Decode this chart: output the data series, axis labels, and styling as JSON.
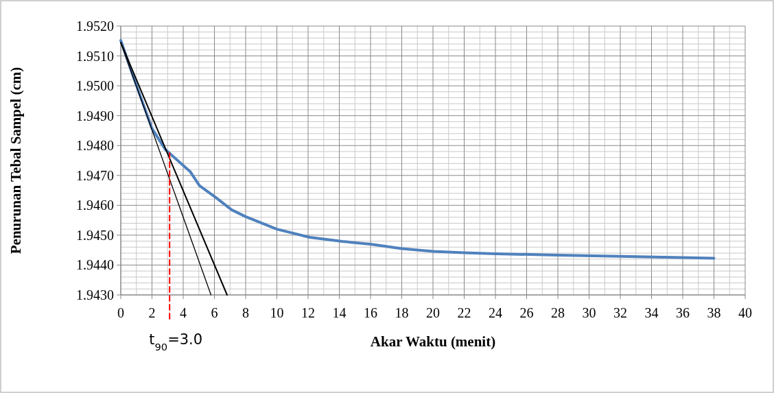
{
  "chart_data": {
    "type": "line",
    "xlabel": "Akar Waktu (menit)",
    "ylabel": "Penurunan Tebal Sampel (cm)",
    "xlim": [
      0,
      40
    ],
    "xticks": [
      0,
      2,
      4,
      6,
      8,
      10,
      12,
      14,
      16,
      18,
      20,
      22,
      24,
      26,
      28,
      30,
      32,
      34,
      36,
      38,
      40
    ],
    "ylim": [
      1.943,
      1.952
    ],
    "yticks": [
      {
        "value": 1.943,
        "label": "1.9430"
      },
      {
        "value": 1.944,
        "label": "1.9440"
      },
      {
        "value": 1.945,
        "label": "1.9450"
      },
      {
        "value": 1.946,
        "label": "1.9460"
      },
      {
        "value": 1.947,
        "label": "1.9470"
      },
      {
        "value": 1.948,
        "label": "1.9480"
      },
      {
        "value": 1.949,
        "label": "1.9490"
      },
      {
        "value": 1.95,
        "label": "1.9500"
      },
      {
        "value": 1.951,
        "label": "1.9510"
      },
      {
        "value": 1.952,
        "label": "1.9520"
      }
    ],
    "grid": true,
    "marker": "none",
    "series": [
      {
        "color": "#4f81bd",
        "x": [
          0,
          0.78,
          2,
          2.84,
          3.13,
          4.46,
          5.04,
          6.07,
          7.1,
          8,
          10,
          12.1,
          14.2,
          16,
          18,
          20,
          22,
          24,
          28,
          32,
          38
        ],
        "values": [
          1.95152,
          1.95034,
          1.94857,
          1.94788,
          1.94774,
          1.94712,
          1.94666,
          1.94627,
          1.94585,
          1.94562,
          1.9452,
          1.94493,
          1.94479,
          1.9447,
          1.94455,
          1.94446,
          1.94441,
          1.94438,
          1.94433,
          1.94429,
          1.94423
        ]
      },
      {
        "color": "#000000",
        "x": [
          0,
          6.81
        ],
        "values": [
          1.95145,
          1.943
        ]
      },
      {
        "color": "#000000",
        "x": [
          0,
          5.78
        ],
        "values": [
          1.95145,
          1.943
        ]
      },
      {
        "color": "#ff0000",
        "line_style": "dashed",
        "x": [
          3.13,
          3.13
        ],
        "values": [
          1.943,
          1.94775
        ]
      }
    ],
    "annotations": [
      {
        "text": "t$_{90}$=3.0",
        "x": 3.13,
        "y": 1.943
      }
    ]
  }
}
